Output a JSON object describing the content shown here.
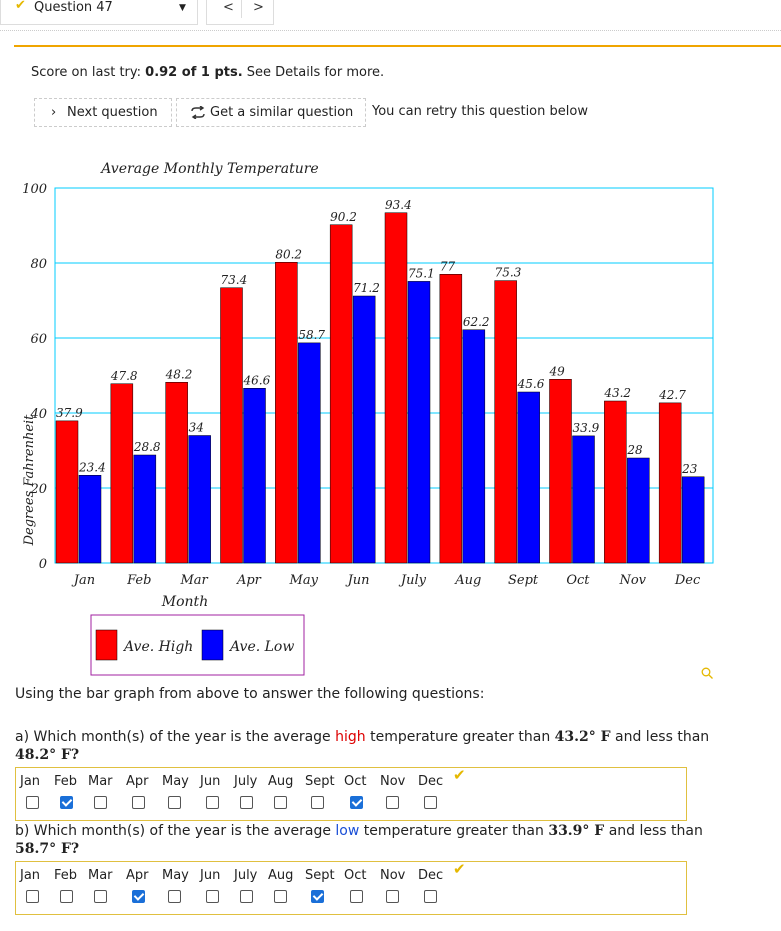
{
  "header": {
    "question_label": "Question 47",
    "prev_icon": "chevron-left-icon",
    "next_icon": "chevron-right-icon"
  },
  "score": {
    "prefix": "Score on last try: ",
    "value": "0.92 of 1 pts.",
    "suffix": " See Details for more."
  },
  "actions": {
    "next_label": "Next question",
    "similar_label": "Get a similar question",
    "retry_text": "You can retry this question below"
  },
  "colors": {
    "high": "#ff0000",
    "low": "#0000ff",
    "accent": "#f0a500",
    "grid": "#00ccff"
  },
  "chart_data": {
    "type": "bar",
    "title": "Average Monthly Temperature",
    "xlabel": "Month",
    "ylabel": "Degrees Fahrenheit",
    "ylim": [
      0,
      100
    ],
    "yticks": [
      0,
      20,
      40,
      60,
      80,
      100
    ],
    "categories": [
      "Jan",
      "Feb",
      "Mar",
      "Apr",
      "May",
      "Jun",
      "July",
      "Aug",
      "Sept",
      "Oct",
      "Nov",
      "Dec"
    ],
    "series": [
      {
        "name": "Ave. High",
        "values": [
          37.9,
          47.8,
          48.2,
          73.4,
          80.2,
          90.2,
          93.4,
          77,
          75.3,
          49,
          43.2,
          42.7
        ]
      },
      {
        "name": "Ave. Low",
        "values": [
          23.4,
          28.8,
          34,
          46.6,
          58.7,
          71.2,
          75.1,
          62.2,
          45.6,
          33.9,
          28,
          23
        ]
      }
    ],
    "legend": "bottom-left"
  },
  "intro": "Using the bar graph from above to answer the following questions:",
  "questions": [
    {
      "pre": "a) Which month(s) of the year is the average ",
      "kind": "high",
      "mid": " temperature greater than ",
      "lo": "43.2° F",
      "and": " and less than",
      "hi": "48.2° F",
      "end": "?",
      "checked": [
        false,
        true,
        false,
        false,
        false,
        false,
        false,
        false,
        false,
        true,
        false,
        false
      ]
    },
    {
      "pre": "b) Which month(s) of the year is the average ",
      "kind": "low",
      "mid": " temperature greater than ",
      "lo": "33.9° F",
      "and": " and less than",
      "hi": "58.7° F",
      "end": "?",
      "checked": [
        false,
        false,
        false,
        true,
        false,
        false,
        false,
        false,
        true,
        false,
        false,
        false
      ]
    }
  ],
  "months": [
    "Jan",
    "Feb",
    "Mar",
    "Apr",
    "May",
    "Jun",
    "July",
    "Aug",
    "Sept",
    "Oct",
    "Nov",
    "Dec"
  ]
}
